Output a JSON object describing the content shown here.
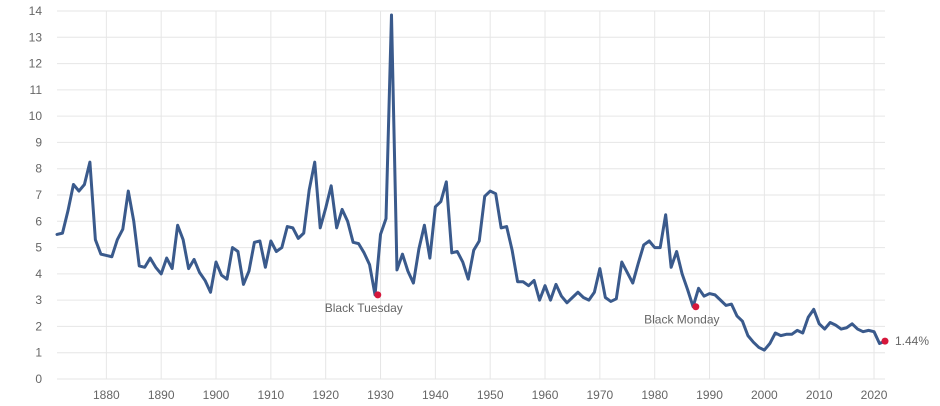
{
  "chart_data": {
    "type": "line",
    "title": "",
    "xlabel": "",
    "ylabel": "",
    "xlim": [
      1871,
      2022
    ],
    "ylim": [
      0,
      14
    ],
    "x_ticks": [
      1880,
      1890,
      1900,
      1910,
      1920,
      1930,
      1940,
      1950,
      1960,
      1970,
      1980,
      1990,
      2000,
      2010,
      2020
    ],
    "y_ticks": [
      0,
      1,
      2,
      3,
      4,
      5,
      6,
      7,
      8,
      9,
      10,
      11,
      12,
      13,
      14
    ],
    "grid": true,
    "legend": "none",
    "line_color": "#3a5a8c",
    "marker_color": "#d6173b",
    "series": [
      {
        "x": [
          1871,
          1872,
          1873,
          1874,
          1875,
          1876,
          1877,
          1878,
          1879,
          1880,
          1881,
          1882,
          1883,
          1884,
          1885,
          1886,
          1887,
          1888,
          1889,
          1890,
          1891,
          1892,
          1893,
          1894,
          1895,
          1896,
          1897,
          1898,
          1899,
          1900,
          1901,
          1902,
          1903,
          1904,
          1905,
          1906,
          1907,
          1908,
          1909,
          1910,
          1911,
          1912,
          1913,
          1914,
          1915,
          1916,
          1917,
          1918,
          1919,
          1920,
          1921,
          1922,
          1923,
          1924,
          1925,
          1926,
          1927,
          1928,
          1929,
          1930,
          1931,
          1932,
          1933,
          1934,
          1935,
          1936,
          1937,
          1938,
          1939,
          1940,
          1941,
          1942,
          1943,
          1944,
          1945,
          1946,
          1947,
          1948,
          1949,
          1950,
          1951,
          1952,
          1953,
          1954,
          1955,
          1956,
          1957,
          1958,
          1959,
          1960,
          1961,
          1962,
          1963,
          1964,
          1965,
          1966,
          1967,
          1968,
          1969,
          1970,
          1971,
          1972,
          1973,
          1974,
          1975,
          1976,
          1977,
          1978,
          1979,
          1980,
          1981,
          1982,
          1983,
          1984,
          1985,
          1986,
          1987,
          1988,
          1989,
          1990,
          1991,
          1992,
          1993,
          1994,
          1995,
          1996,
          1997,
          1998,
          1999,
          2000,
          2001,
          2002,
          2003,
          2004,
          2005,
          2006,
          2007,
          2008,
          2009,
          2010,
          2011,
          2012,
          2013,
          2014,
          2015,
          2016,
          2017,
          2018,
          2019,
          2020,
          2021,
          2022
        ],
        "values": [
          5.5,
          5.55,
          6.4,
          7.4,
          7.15,
          7.4,
          8.25,
          5.3,
          4.75,
          4.7,
          4.65,
          5.3,
          5.7,
          7.15,
          6.0,
          4.3,
          4.25,
          4.6,
          4.25,
          4.0,
          4.6,
          4.2,
          5.85,
          5.3,
          4.2,
          4.55,
          4.05,
          3.75,
          3.3,
          4.45,
          3.95,
          3.8,
          5.0,
          4.85,
          3.6,
          4.1,
          5.2,
          5.25,
          4.25,
          5.25,
          4.85,
          5.0,
          5.8,
          5.75,
          5.35,
          5.55,
          7.2,
          8.25,
          5.75,
          6.5,
          7.35,
          5.75,
          6.45,
          6.0,
          5.2,
          5.15,
          4.8,
          4.35,
          3.2,
          5.5,
          6.1,
          13.85,
          4.15,
          4.75,
          4.1,
          3.65,
          4.95,
          5.85,
          4.6,
          6.55,
          6.75,
          7.5,
          4.8,
          4.85,
          4.45,
          3.8,
          4.9,
          5.25,
          6.95,
          7.15,
          7.05,
          5.75,
          5.8,
          4.9,
          3.7,
          3.7,
          3.55,
          3.75,
          3.0,
          3.55,
          3.0,
          3.6,
          3.15,
          2.9,
          3.1,
          3.3,
          3.1,
          3.0,
          3.3,
          4.2,
          3.1,
          2.95,
          3.05,
          4.45,
          4.05,
          3.65,
          4.4,
          5.1,
          5.25,
          5.0,
          5.0,
          6.25,
          4.25,
          4.85,
          4.0,
          3.4,
          2.75,
          3.45,
          3.15,
          3.25,
          3.2,
          3.0,
          2.8,
          2.85,
          2.4,
          2.2,
          1.65,
          1.4,
          1.2,
          1.1,
          1.35,
          1.75,
          1.65,
          1.7,
          1.7,
          1.85,
          1.75,
          2.35,
          2.65,
          2.1,
          1.9,
          2.15,
          2.05,
          1.9,
          1.95,
          2.1,
          1.9,
          1.8,
          1.85,
          1.8,
          1.35,
          1.44
        ]
      }
    ],
    "annotations": [
      {
        "label": "Black Tuesday",
        "x": 1929.5,
        "y": 3.2
      },
      {
        "label": "Black Monday",
        "x": 1987.5,
        "y": 2.75
      },
      {
        "label": "1.44%",
        "x": 2022,
        "y": 1.44
      }
    ]
  }
}
